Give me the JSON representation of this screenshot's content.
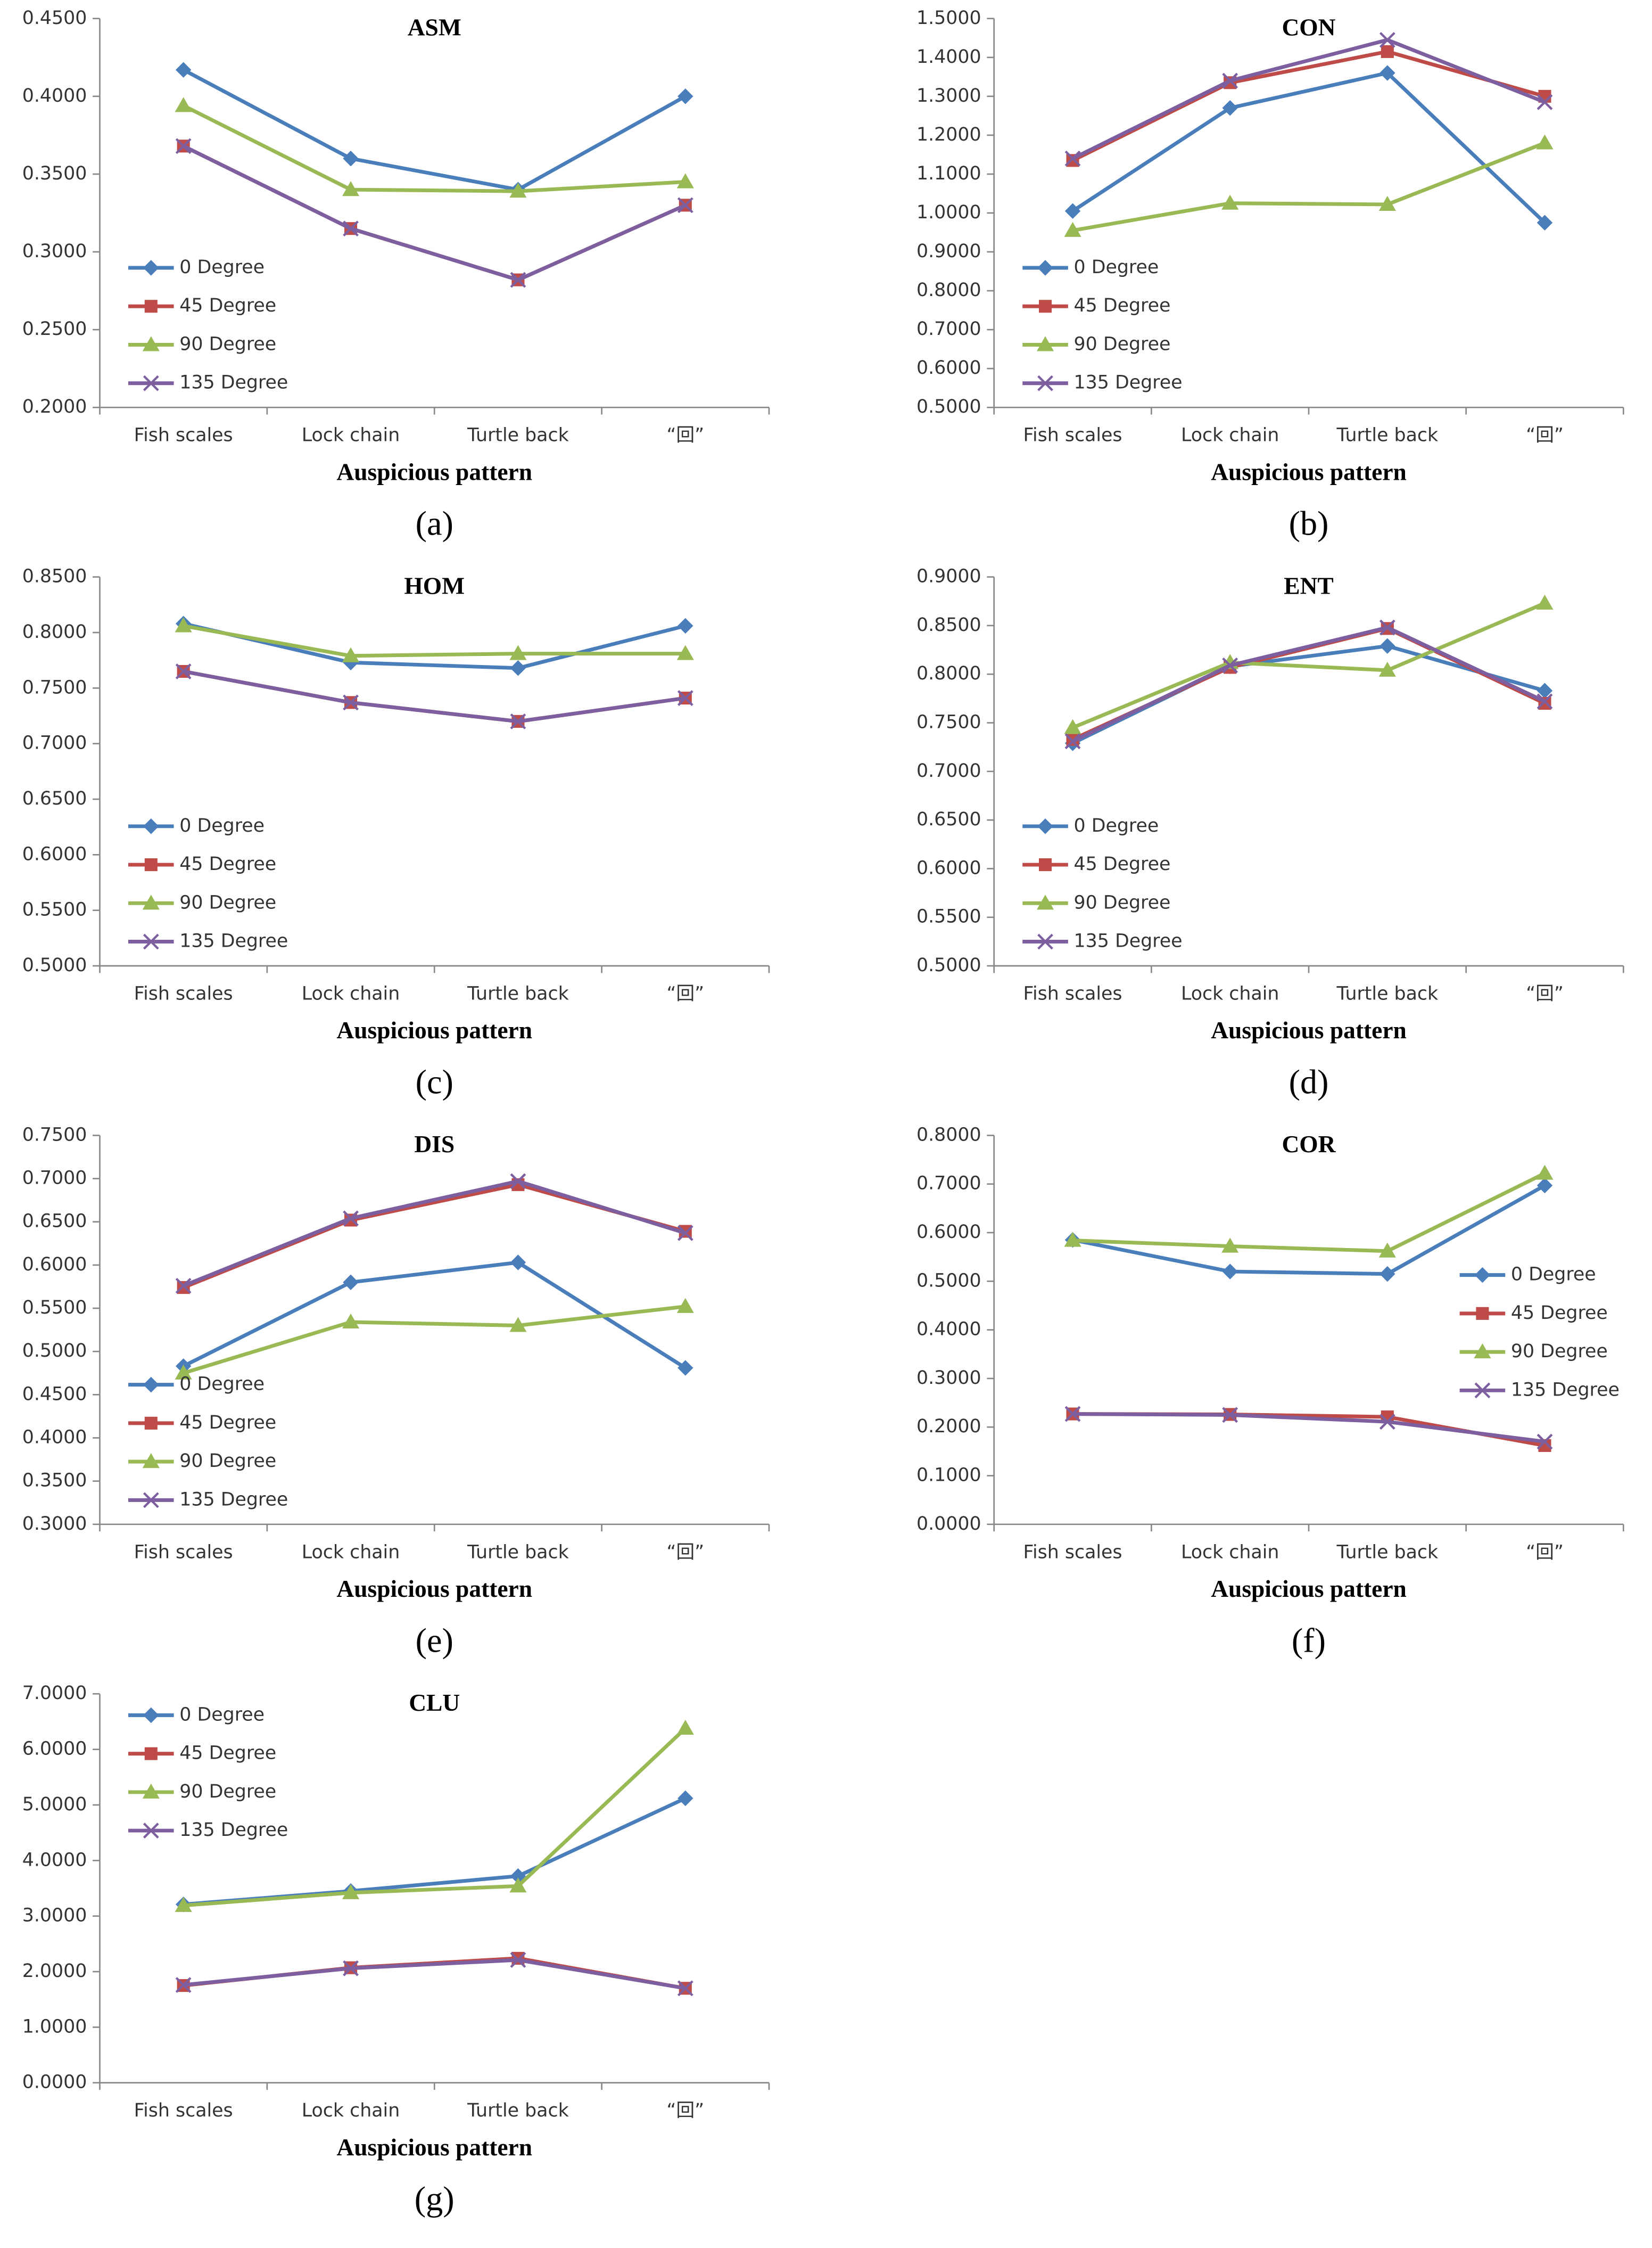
{
  "chart_data": [
    {
      "type": "line",
      "title": "ASM",
      "label": "(a)",
      "xlabel": "Auspicious pattern",
      "legend": "lower left",
      "categories": [
        "Fish scales",
        "Lock chain",
        "Turtle back",
        "“回”"
      ],
      "ylim": [
        0.2,
        0.45
      ],
      "yticks": [
        {
          "value": 0.2,
          "label": "0.2000"
        },
        {
          "value": 0.25,
          "label": "0.2500"
        },
        {
          "value": 0.3,
          "label": "0.3000"
        },
        {
          "value": 0.35,
          "label": "0.3500"
        },
        {
          "value": 0.4,
          "label": "0.4000"
        },
        {
          "value": 0.45,
          "label": "0.4500"
        }
      ],
      "series": [
        {
          "name": "0 Degree",
          "color": "#4a7ebb",
          "marker": "diamond",
          "values": [
            0.417,
            0.36,
            0.34,
            0.4
          ]
        },
        {
          "name": "45 Degree",
          "color": "#be4b48",
          "marker": "square",
          "values": [
            0.368,
            0.315,
            0.282,
            0.33
          ]
        },
        {
          "name": "90 Degree",
          "color": "#98b954",
          "marker": "triangle",
          "values": [
            0.394,
            0.34,
            0.339,
            0.345
          ]
        },
        {
          "name": "135 Degree",
          "color": "#7d5fa0",
          "marker": "x",
          "values": [
            0.368,
            0.315,
            0.282,
            0.33
          ]
        }
      ]
    },
    {
      "type": "line",
      "title": "CON",
      "label": "(b)",
      "xlabel": "Auspicious pattern",
      "legend": "lower left",
      "categories": [
        "Fish scales",
        "Lock chain",
        "Turtle back",
        "“回”"
      ],
      "ylim": [
        0.5,
        1.5
      ],
      "yticks": [
        {
          "value": 0.5,
          "label": "0.5000"
        },
        {
          "value": 0.6,
          "label": "0.6000"
        },
        {
          "value": 0.7,
          "label": "0.7000"
        },
        {
          "value": 0.8,
          "label": "0.8000"
        },
        {
          "value": 0.9,
          "label": "0.9000"
        },
        {
          "value": 1.0,
          "label": "1.0000"
        },
        {
          "value": 1.1,
          "label": "1.1000"
        },
        {
          "value": 1.2,
          "label": "1.2000"
        },
        {
          "value": 1.3,
          "label": "1.3000"
        },
        {
          "value": 1.4,
          "label": "1.4000"
        },
        {
          "value": 1.5,
          "label": "1.5000"
        }
      ],
      "series": [
        {
          "name": "0 Degree",
          "color": "#4a7ebb",
          "marker": "diamond",
          "values": [
            1.005,
            1.27,
            1.36,
            0.975
          ]
        },
        {
          "name": "45 Degree",
          "color": "#be4b48",
          "marker": "square",
          "values": [
            1.135,
            1.335,
            1.415,
            1.3
          ]
        },
        {
          "name": "90 Degree",
          "color": "#98b954",
          "marker": "triangle",
          "values": [
            0.955,
            1.025,
            1.022,
            1.18
          ]
        },
        {
          "name": "135 Degree",
          "color": "#7d5fa0",
          "marker": "x",
          "values": [
            1.14,
            1.34,
            1.445,
            1.285
          ]
        }
      ]
    },
    {
      "type": "line",
      "title": "HOM",
      "label": "(c)",
      "xlabel": "Auspicious pattern",
      "legend": "lower left",
      "categories": [
        "Fish scales",
        "Lock chain",
        "Turtle back",
        "“回”"
      ],
      "ylim": [
        0.5,
        0.85
      ],
      "yticks": [
        {
          "value": 0.5,
          "label": "0.5000"
        },
        {
          "value": 0.55,
          "label": "0.5500"
        },
        {
          "value": 0.6,
          "label": "0.6000"
        },
        {
          "value": 0.65,
          "label": "0.6500"
        },
        {
          "value": 0.7,
          "label": "0.7000"
        },
        {
          "value": 0.75,
          "label": "0.7500"
        },
        {
          "value": 0.8,
          "label": "0.8000"
        },
        {
          "value": 0.85,
          "label": "0.8500"
        }
      ],
      "series": [
        {
          "name": "0 Degree",
          "color": "#4a7ebb",
          "marker": "diamond",
          "values": [
            0.808,
            0.773,
            0.768,
            0.806
          ]
        },
        {
          "name": "45 Degree",
          "color": "#be4b48",
          "marker": "square",
          "values": [
            0.765,
            0.737,
            0.72,
            0.741
          ]
        },
        {
          "name": "90 Degree",
          "color": "#98b954",
          "marker": "triangle",
          "values": [
            0.806,
            0.779,
            0.781,
            0.781
          ]
        },
        {
          "name": "135 Degree",
          "color": "#7d5fa0",
          "marker": "x",
          "values": [
            0.765,
            0.737,
            0.72,
            0.741
          ]
        }
      ]
    },
    {
      "type": "line",
      "title": "ENT",
      "label": "(d)",
      "xlabel": "Auspicious pattern",
      "legend": "lower left",
      "categories": [
        "Fish scales",
        "Lock chain",
        "Turtle back",
        "“回”"
      ],
      "ylim": [
        0.5,
        0.9
      ],
      "yticks": [
        {
          "value": 0.5,
          "label": "0.5000"
        },
        {
          "value": 0.55,
          "label": "0.5500"
        },
        {
          "value": 0.6,
          "label": "0.6000"
        },
        {
          "value": 0.65,
          "label": "0.6500"
        },
        {
          "value": 0.7,
          "label": "0.7000"
        },
        {
          "value": 0.75,
          "label": "0.7500"
        },
        {
          "value": 0.8,
          "label": "0.8000"
        },
        {
          "value": 0.85,
          "label": "0.8500"
        },
        {
          "value": 0.9,
          "label": "0.9000"
        }
      ],
      "series": [
        {
          "name": "0 Degree",
          "color": "#4a7ebb",
          "marker": "diamond",
          "values": [
            0.729,
            0.808,
            0.829,
            0.783
          ]
        },
        {
          "name": "45 Degree",
          "color": "#be4b48",
          "marker": "square",
          "values": [
            0.733,
            0.807,
            0.847,
            0.77
          ]
        },
        {
          "name": "90 Degree",
          "color": "#98b954",
          "marker": "triangle",
          "values": [
            0.745,
            0.812,
            0.804,
            0.873
          ]
        },
        {
          "name": "135 Degree",
          "color": "#7d5fa0",
          "marker": "x",
          "values": [
            0.731,
            0.809,
            0.848,
            0.772
          ]
        }
      ]
    },
    {
      "type": "line",
      "title": "DIS",
      "label": "(e)",
      "xlabel": "Auspicious pattern",
      "legend": "lower left",
      "categories": [
        "Fish scales",
        "Lock chain",
        "Turtle back",
        "“回”"
      ],
      "ylim": [
        0.3,
        0.75
      ],
      "yticks": [
        {
          "value": 0.3,
          "label": "0.3000"
        },
        {
          "value": 0.35,
          "label": "0.3500"
        },
        {
          "value": 0.4,
          "label": "0.4000"
        },
        {
          "value": 0.45,
          "label": "0.4500"
        },
        {
          "value": 0.5,
          "label": "0.5000"
        },
        {
          "value": 0.55,
          "label": "0.5500"
        },
        {
          "value": 0.6,
          "label": "0.6000"
        },
        {
          "value": 0.65,
          "label": "0.6500"
        },
        {
          "value": 0.7,
          "label": "0.7000"
        },
        {
          "value": 0.75,
          "label": "0.7500"
        }
      ],
      "series": [
        {
          "name": "0 Degree",
          "color": "#4a7ebb",
          "marker": "diamond",
          "values": [
            0.483,
            0.58,
            0.603,
            0.481
          ]
        },
        {
          "name": "45 Degree",
          "color": "#be4b48",
          "marker": "square",
          "values": [
            0.574,
            0.652,
            0.693,
            0.639
          ]
        },
        {
          "name": "90 Degree",
          "color": "#98b954",
          "marker": "triangle",
          "values": [
            0.475,
            0.534,
            0.53,
            0.552
          ]
        },
        {
          "name": "135 Degree",
          "color": "#7d5fa0",
          "marker": "x",
          "values": [
            0.576,
            0.654,
            0.697,
            0.637
          ]
        }
      ]
    },
    {
      "type": "line",
      "title": "COR",
      "label": "(f)",
      "xlabel": "Auspicious pattern",
      "legend": "center right",
      "categories": [
        "Fish scales",
        "Lock chain",
        "Turtle back",
        "“回”"
      ],
      "ylim": [
        0,
        0.8
      ],
      "yticks": [
        {
          "value": 0,
          "label": "0.0000"
        },
        {
          "value": 0.1,
          "label": "0.1000"
        },
        {
          "value": 0.2,
          "label": "0.2000"
        },
        {
          "value": 0.3,
          "label": "0.3000"
        },
        {
          "value": 0.4,
          "label": "0.4000"
        },
        {
          "value": 0.5,
          "label": "0.5000"
        },
        {
          "value": 0.6,
          "label": "0.6000"
        },
        {
          "value": 0.7,
          "label": "0.7000"
        },
        {
          "value": 0.8,
          "label": "0.8000"
        }
      ],
      "series": [
        {
          "name": "0 Degree",
          "color": "#4a7ebb",
          "marker": "diamond",
          "values": [
            0.585,
            0.52,
            0.515,
            0.697
          ]
        },
        {
          "name": "45 Degree",
          "color": "#be4b48",
          "marker": "square",
          "values": [
            0.227,
            0.226,
            0.221,
            0.162
          ]
        },
        {
          "name": "90 Degree",
          "color": "#98b954",
          "marker": "triangle",
          "values": [
            0.584,
            0.572,
            0.562,
            0.722
          ]
        },
        {
          "name": "135 Degree",
          "color": "#7d5fa0",
          "marker": "x",
          "values": [
            0.227,
            0.225,
            0.211,
            0.17
          ]
        }
      ]
    },
    {
      "type": "line",
      "title": "CLU",
      "label": "(g)",
      "xlabel": "Auspicious pattern",
      "legend": "upper left",
      "categories": [
        "Fish scales",
        "Lock chain",
        "Turtle back",
        "“回”"
      ],
      "ylim": [
        0,
        7
      ],
      "yticks": [
        {
          "value": 0,
          "label": "0.0000"
        },
        {
          "value": 1,
          "label": "1.0000"
        },
        {
          "value": 2,
          "label": "2.0000"
        },
        {
          "value": 3,
          "label": "3.0000"
        },
        {
          "value": 4,
          "label": "4.0000"
        },
        {
          "value": 5,
          "label": "5.0000"
        },
        {
          "value": 6,
          "label": "6.0000"
        },
        {
          "value": 7,
          "label": "7.0000"
        }
      ],
      "series": [
        {
          "name": "0 Degree",
          "color": "#4a7ebb",
          "marker": "diamond",
          "values": [
            3.21,
            3.45,
            3.72,
            5.12
          ]
        },
        {
          "name": "45 Degree",
          "color": "#be4b48",
          "marker": "square",
          "values": [
            1.75,
            2.07,
            2.24,
            1.7
          ]
        },
        {
          "name": "90 Degree",
          "color": "#98b954",
          "marker": "triangle",
          "values": [
            3.19,
            3.42,
            3.54,
            6.38
          ]
        },
        {
          "name": "135 Degree",
          "color": "#7d5fa0",
          "marker": "x",
          "values": [
            1.76,
            2.06,
            2.21,
            1.7
          ]
        }
      ]
    }
  ]
}
